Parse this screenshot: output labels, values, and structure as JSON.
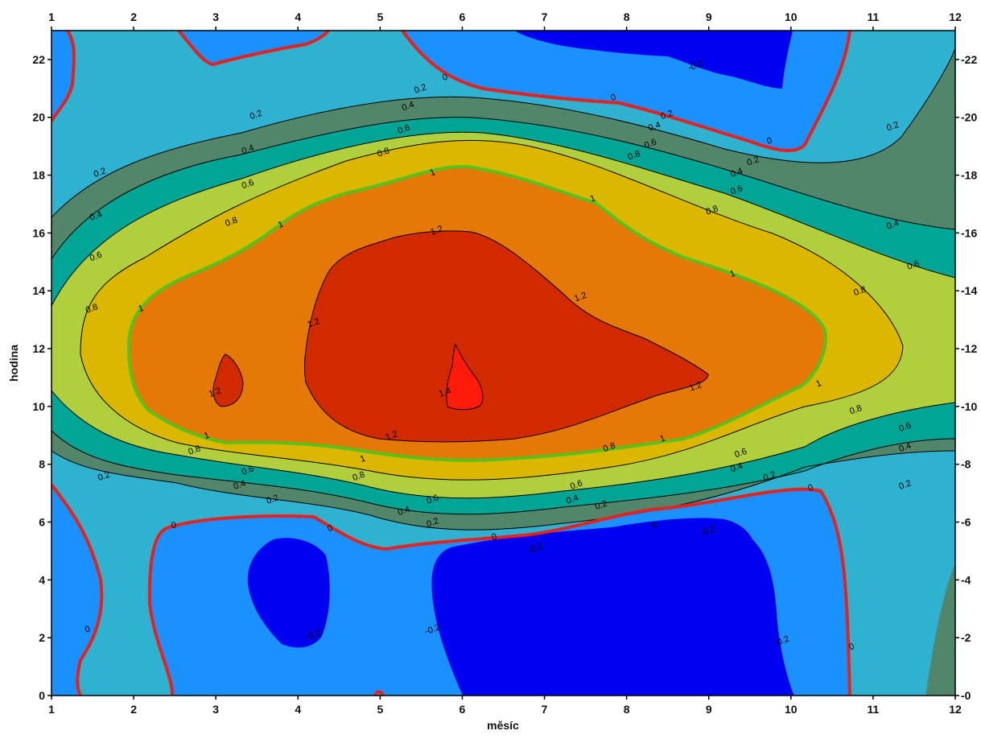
{
  "chart_data": {
    "type": "contour",
    "title": "",
    "xlabel": "měsíc",
    "ylabel": "hodina",
    "xlim": [
      1,
      12
    ],
    "ylim": [
      0,
      23
    ],
    "x_ticks": [
      "1",
      "2",
      "3",
      "4",
      "5",
      "6",
      "7",
      "8",
      "9",
      "10",
      "11",
      "12"
    ],
    "y_ticks": [
      "0",
      "2",
      "4",
      "6",
      "8",
      "10",
      "12",
      "14",
      "16",
      "18",
      "20",
      "22"
    ],
    "contour_levels": [
      -0.2,
      0,
      0.2,
      0.4,
      0.6,
      0.8,
      1,
      1.2,
      1.4
    ],
    "contour_labels": [
      {
        "text": "0",
        "x": 5.8,
        "y": 21.3
      },
      {
        "text": "0",
        "x": 7.85,
        "y": 20.6
      },
      {
        "text": "0",
        "x": 9.75,
        "y": 19.1
      },
      {
        "text": "0",
        "x": 2.5,
        "y": 5.8
      },
      {
        "text": "0",
        "x": 4.4,
        "y": 5.7
      },
      {
        "text": "0",
        "x": 6.4,
        "y": 5.4
      },
      {
        "text": "0",
        "x": 8.35,
        "y": 5.8
      },
      {
        "text": "0",
        "x": 10.25,
        "y": 7.1
      },
      {
        "text": "0",
        "x": 1.45,
        "y": 2.2
      },
      {
        "text": "0",
        "x": 10.75,
        "y": 1.6
      },
      {
        "text": "-0.2",
        "x": 8.85,
        "y": 21.7
      },
      {
        "text": "-0.2",
        "x": 9.9,
        "y": 1.8
      },
      {
        "text": "-0.2",
        "x": 5.65,
        "y": 2.2
      },
      {
        "text": "-0.2",
        "x": 4.2,
        "y": 2.0
      },
      {
        "text": "-0.2",
        "x": 6.9,
        "y": 5.0
      },
      {
        "text": "-0.2",
        "x": 9.0,
        "y": 5.6
      },
      {
        "text": "0.2",
        "x": 5.5,
        "y": 20.9
      },
      {
        "text": "0.2",
        "x": 3.5,
        "y": 20.0
      },
      {
        "text": "0.2",
        "x": 1.6,
        "y": 18.0
      },
      {
        "text": "0.2",
        "x": 8.5,
        "y": 20.0
      },
      {
        "text": "0.2",
        "x": 9.55,
        "y": 18.4
      },
      {
        "text": "0.2",
        "x": 11.25,
        "y": 19.6
      },
      {
        "text": "0.2",
        "x": 1.65,
        "y": 7.5
      },
      {
        "text": "0.2",
        "x": 3.7,
        "y": 6.7
      },
      {
        "text": "0.2",
        "x": 5.65,
        "y": 5.9
      },
      {
        "text": "0.2",
        "x": 7.7,
        "y": 6.5
      },
      {
        "text": "0.2",
        "x": 9.75,
        "y": 7.5
      },
      {
        "text": "0.2",
        "x": 11.4,
        "y": 7.2
      },
      {
        "text": "0.4",
        "x": 5.35,
        "y": 20.3
      },
      {
        "text": "0.4",
        "x": 3.4,
        "y": 18.8
      },
      {
        "text": "0.4",
        "x": 1.55,
        "y": 16.5
      },
      {
        "text": "0.4",
        "x": 8.35,
        "y": 19.6
      },
      {
        "text": "0.4",
        "x": 9.35,
        "y": 18.0
      },
      {
        "text": "0.4",
        "x": 11.25,
        "y": 16.2
      },
      {
        "text": "0.4",
        "x": 3.3,
        "y": 7.2
      },
      {
        "text": "0.4",
        "x": 5.3,
        "y": 6.3
      },
      {
        "text": "0.4",
        "x": 7.35,
        "y": 6.7
      },
      {
        "text": "0.4",
        "x": 9.35,
        "y": 7.8
      },
      {
        "text": "0.4",
        "x": 11.4,
        "y": 8.5
      },
      {
        "text": "0.6",
        "x": 5.3,
        "y": 19.5
      },
      {
        "text": "0.6",
        "x": 3.4,
        "y": 17.6
      },
      {
        "text": "0.6",
        "x": 1.55,
        "y": 15.1
      },
      {
        "text": "0.6",
        "x": 8.3,
        "y": 19.0
      },
      {
        "text": "0.6",
        "x": 9.35,
        "y": 17.4
      },
      {
        "text": "0.6",
        "x": 11.5,
        "y": 14.8
      },
      {
        "text": "0.6",
        "x": 3.4,
        "y": 7.7
      },
      {
        "text": "0.6",
        "x": 5.65,
        "y": 6.7
      },
      {
        "text": "0.6",
        "x": 7.4,
        "y": 7.2
      },
      {
        "text": "0.6",
        "x": 9.4,
        "y": 8.3
      },
      {
        "text": "0.6",
        "x": 11.4,
        "y": 9.2
      },
      {
        "text": "0.8",
        "x": 5.05,
        "y": 18.7
      },
      {
        "text": "0.8",
        "x": 3.2,
        "y": 16.3
      },
      {
        "text": "0.8",
        "x": 1.5,
        "y": 13.3
      },
      {
        "text": "0.8",
        "x": 8.1,
        "y": 18.6
      },
      {
        "text": "0.8",
        "x": 9.05,
        "y": 16.7
      },
      {
        "text": "0.8",
        "x": 10.85,
        "y": 13.9
      },
      {
        "text": "0.8",
        "x": 2.75,
        "y": 8.4
      },
      {
        "text": "0.8",
        "x": 4.75,
        "y": 7.5
      },
      {
        "text": "0.8",
        "x": 7.8,
        "y": 8.5
      },
      {
        "text": "0.8",
        "x": 10.8,
        "y": 9.8
      },
      {
        "text": "1",
        "x": 5.65,
        "y": 18.0
      },
      {
        "text": "1",
        "x": 3.8,
        "y": 16.2
      },
      {
        "text": "1",
        "x": 2.1,
        "y": 13.3
      },
      {
        "text": "1",
        "x": 7.6,
        "y": 17.1
      },
      {
        "text": "1",
        "x": 9.3,
        "y": 14.5
      },
      {
        "text": "1",
        "x": 10.35,
        "y": 10.7
      },
      {
        "text": "1",
        "x": 2.9,
        "y": 8.9
      },
      {
        "text": "1",
        "x": 4.8,
        "y": 8.1
      },
      {
        "text": "1",
        "x": 8.45,
        "y": 8.8
      },
      {
        "text": "1.2",
        "x": 5.7,
        "y": 16.0
      },
      {
        "text": "1.2",
        "x": 4.2,
        "y": 12.8
      },
      {
        "text": "1.2",
        "x": 7.45,
        "y": 13.7
      },
      {
        "text": "1.2",
        "x": 8.85,
        "y": 10.6
      },
      {
        "text": "1.2",
        "x": 5.15,
        "y": 8.9
      },
      {
        "text": "1.2",
        "x": 3.0,
        "y": 10.4
      },
      {
        "text": "1.4",
        "x": 5.8,
        "y": 10.4
      }
    ]
  }
}
